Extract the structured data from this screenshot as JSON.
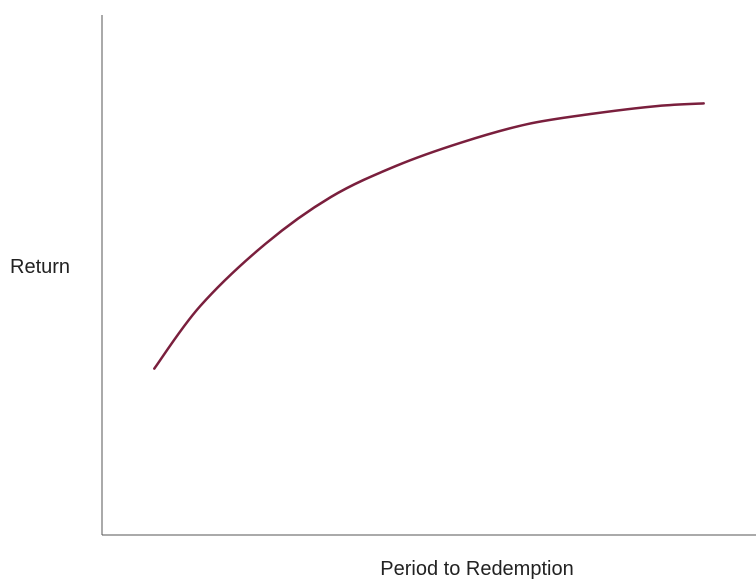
{
  "chart_data": {
    "type": "line",
    "title": "",
    "xlabel": "Period to Redemption",
    "ylabel": "Return",
    "xlim": [
      0,
      10
    ],
    "ylim": [
      0,
      10
    ],
    "grid": false,
    "legend": "none",
    "series": [
      {
        "color": "#7a1f3d",
        "x": [
          0.8,
          1.5,
          2.5,
          3.5,
          4.5,
          5.5,
          6.5,
          7.5,
          8.5,
          9.2
        ],
        "y": [
          3.2,
          4.4,
          5.6,
          6.5,
          7.1,
          7.55,
          7.9,
          8.1,
          8.25,
          8.3
        ]
      }
    ]
  }
}
